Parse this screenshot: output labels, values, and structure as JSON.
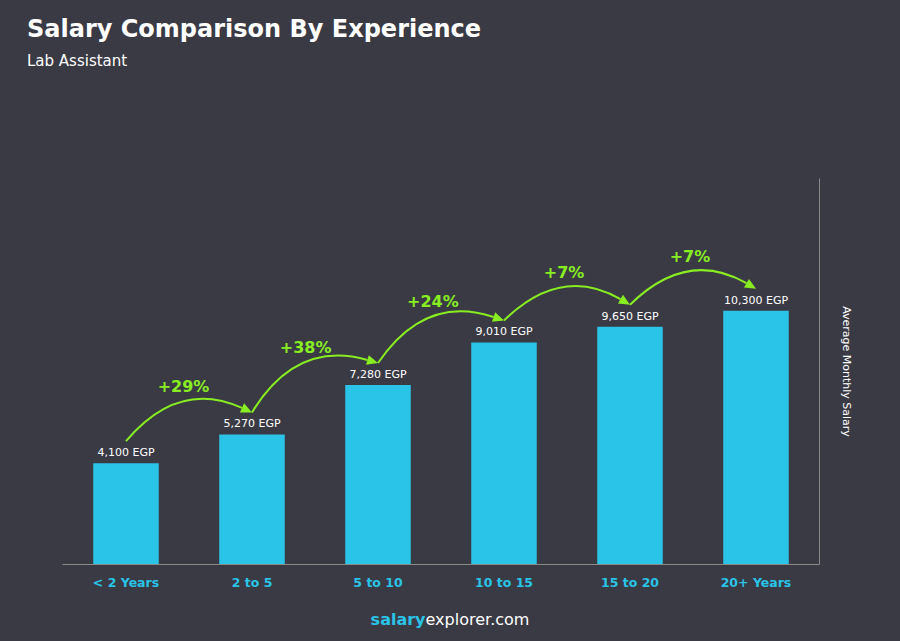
{
  "chart_data": {
    "type": "bar",
    "title": "Salary Comparison By Experience",
    "subtitle": "Lab Assistant",
    "ylabel": "Average Monthly Salary",
    "categories": [
      "< 2 Years",
      "2 to 5",
      "5 to 10",
      "10 to 15",
      "15 to 20",
      "20+ Years"
    ],
    "values": [
      4100,
      5270,
      7280,
      9010,
      9650,
      10300
    ],
    "value_labels": [
      "4,100 EGP",
      "5,270 EGP",
      "7,280 EGP",
      "9,010 EGP",
      "9,650 EGP",
      "10,300 EGP"
    ],
    "data_labels": true,
    "color": "#29C4E8",
    "annotations": [
      "+29%",
      "+38%",
      "+24%",
      "+7%",
      "+7%"
    ],
    "footer": [
      "salary",
      "explorer.com"
    ],
    "ylim": [
      0,
      15656
    ],
    "yticks": [],
    "tick_labels": "x",
    "grid": false
  }
}
